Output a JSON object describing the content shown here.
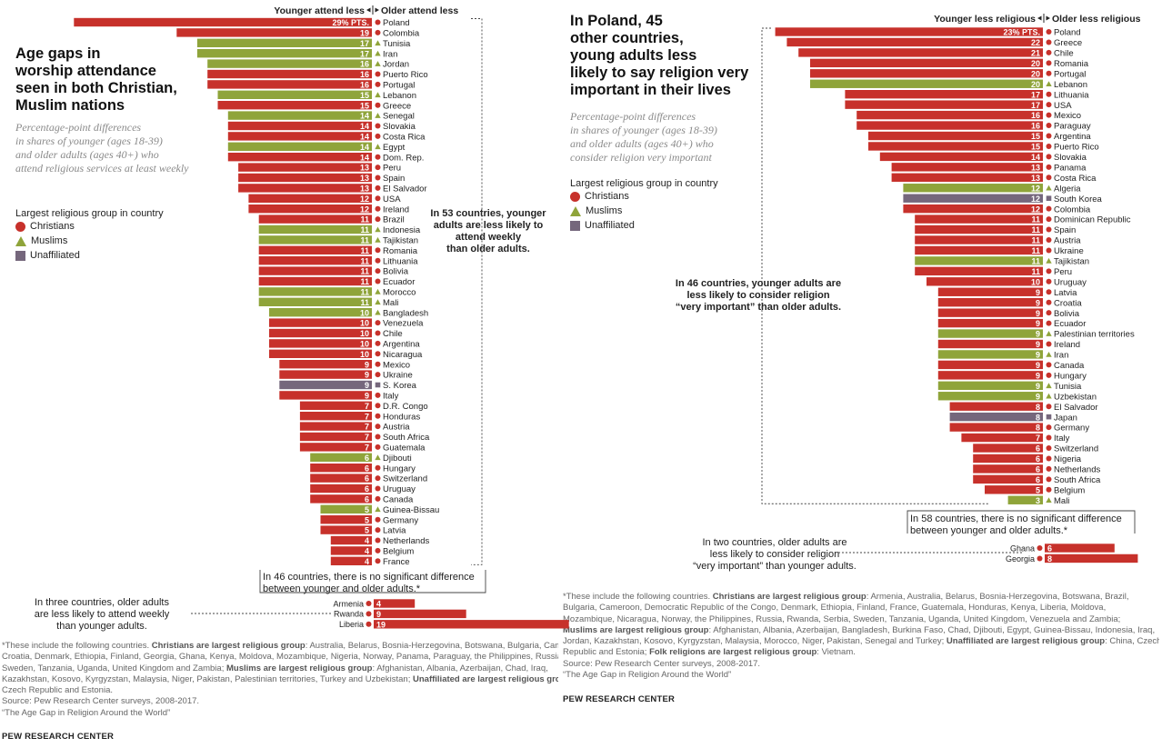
{
  "colors": {
    "Christians": "#c7312b",
    "Muslims": "#8fa43a",
    "Unaffiliated": "#75677c"
  },
  "left": {
    "title": "Age gaps in worship attendance seen in both Christian, Muslim nations",
    "title_lines": [
      "Age gaps in",
      "worship attendance",
      "seen in both Christian,",
      "Muslim nations"
    ],
    "subtitle_lines": [
      "Percentage-point differences",
      "in shares of younger (ages 18-39)",
      "and older adults (ages 40+) who",
      "attend religious services at least weekly"
    ],
    "legend_title": "Largest religious group in country",
    "legend": [
      "Christians",
      "Muslims",
      "Unaffiliated"
    ],
    "header_left": "Younger attend less",
    "header_right": "Older attend less",
    "note_main": [
      "In 53 countries, younger",
      "adults are less likely to",
      "attend weekly",
      "than older adults."
    ],
    "note_nodiff": [
      "In 46 countries, there is no significant difference",
      "between younger and older adults.*"
    ],
    "note_reverse": [
      "In three countries, older adults",
      "are less likely to attend weekly",
      "than younger adults."
    ],
    "first_label": "29% PTS."
  },
  "right": {
    "title": "In Poland, 45 other countries, young adults less likely to say religion very important in their lives",
    "title_lines": [
      "In Poland, 45",
      "other countries,",
      "young adults less",
      "likely to say religion very",
      "important in their lives"
    ],
    "subtitle_lines": [
      "Percentage-point differences",
      "in shares of younger (ages 18-39)",
      "and older adults (ages 40+) who",
      "consider religion very important"
    ],
    "legend_title": "Largest religious group in country",
    "legend": [
      "Christians",
      "Muslims",
      "Unaffiliated"
    ],
    "header_left": "Younger less religious",
    "header_right": "Older less religious",
    "note_main": [
      "In 46 countries, younger adults are",
      "less likely to consider religion",
      "“very important” than older adults."
    ],
    "note_nodiff": [
      "In 58 countries, there is no significant difference",
      "between younger and older adults.*"
    ],
    "note_reverse": [
      "In two countries, older adults are",
      "less likely to consider religion",
      "“very important” than younger adults."
    ],
    "first_label": "23% PTS."
  },
  "footnote_left": [
    "*These include the following countries. <b>Christians are largest religious group</b>: Australia, Belarus, Bosnia-Herzegovina, Botswana, Bulgaria, Cameroon,",
    "Croatia, Denmark, Ethiopia, Finland, Georgia, Ghana, Kenya, Moldova, Mozambique, Nigeria, Norway, Panama, Paraguay, the Philippines, Russia, Serbia,",
    "Sweden, Tanzania, Uganda, United Kingdom and Zambia; <b>Muslims are largest religious group</b>: Afghanistan, Albania, Azerbaijan, Chad, Iraq,",
    "Kazakhstan, Kosovo, Kyrgyzstan, Malaysia, Niger, Pakistan, Palestinian territories, Turkey and Uzbekistan; <b>Unaffiliated are largest religious group</b>:",
    "Czech Republic and Estonia.",
    "Source: Pew Research Center surveys, 2008-2017.",
    "“The Age Gap in Religion Around the World”"
  ],
  "footnote_right": [
    "*These include the following countries. <b>Christians are largest religious group</b>: Armenia, Australia, Belarus, Bosnia-Herzegovina, Botswana, Brazil,",
    "Bulgaria, Cameroon, Democratic Republic of the Congo, Denmark, Ethiopia, Finland, France, Guatemala, Honduras, Kenya, Liberia, Moldova,",
    "Mozambique, Nicaragua, Norway, the Philippines, Russia, Rwanda, Serbia, Sweden, Tanzania, Uganda, United Kingdom, Venezuela and Zambia;",
    "<b>Muslims are largest religious group</b>: Afghanistan, Albania, Azerbaijan, Bangladesh, Burkina Faso, Chad, Djibouti, Egypt, Guinea-Bissau, Indonesia, Iraq,",
    "Jordan, Kazakhstan, Kosovo, Kyrgyzstan, Malaysia, Morocco, Niger, Pakistan, Senegal and Turkey; <b>Unaffiliated are largest religious group</b>: China, Czech",
    "Republic and Estonia; <b>Folk religions are largest religious group</b>: Vietnam.",
    "Source: Pew Research Center surveys, 2008-2017.",
    "“The Age Gap in Religion Around the World”"
  ],
  "brand": "PEW RESEARCH CENTER",
  "chart_data": [
    {
      "type": "bar",
      "title": "Age gaps in worship attendance seen in both Christian, Muslim nations",
      "value_unit": "percentage points",
      "series": [
        {
          "country": "Poland",
          "value": 29,
          "group": "Christians"
        },
        {
          "country": "Colombia",
          "value": 19,
          "group": "Christians"
        },
        {
          "country": "Tunisia",
          "value": 17,
          "group": "Muslims"
        },
        {
          "country": "Iran",
          "value": 17,
          "group": "Muslims"
        },
        {
          "country": "Jordan",
          "value": 16,
          "group": "Muslims"
        },
        {
          "country": "Puerto Rico",
          "value": 16,
          "group": "Christians"
        },
        {
          "country": "Portugal",
          "value": 16,
          "group": "Christians"
        },
        {
          "country": "Lebanon",
          "value": 15,
          "group": "Muslims"
        },
        {
          "country": "Greece",
          "value": 15,
          "group": "Christians"
        },
        {
          "country": "Senegal",
          "value": 14,
          "group": "Muslims"
        },
        {
          "country": "Slovakia",
          "value": 14,
          "group": "Christians"
        },
        {
          "country": "Costa Rica",
          "value": 14,
          "group": "Christians"
        },
        {
          "country": "Egypt",
          "value": 14,
          "group": "Muslims"
        },
        {
          "country": "Dom. Rep.",
          "value": 14,
          "group": "Christians"
        },
        {
          "country": "Peru",
          "value": 13,
          "group": "Christians"
        },
        {
          "country": "Spain",
          "value": 13,
          "group": "Christians"
        },
        {
          "country": "El Salvador",
          "value": 13,
          "group": "Christians"
        },
        {
          "country": "USA",
          "value": 12,
          "group": "Christians"
        },
        {
          "country": "Ireland",
          "value": 12,
          "group": "Christians"
        },
        {
          "country": "Brazil",
          "value": 11,
          "group": "Christians"
        },
        {
          "country": "Indonesia",
          "value": 11,
          "group": "Muslims"
        },
        {
          "country": "Tajikistan",
          "value": 11,
          "group": "Muslims"
        },
        {
          "country": "Romania",
          "value": 11,
          "group": "Christians"
        },
        {
          "country": "Lithuania",
          "value": 11,
          "group": "Christians"
        },
        {
          "country": "Bolivia",
          "value": 11,
          "group": "Christians"
        },
        {
          "country": "Ecuador",
          "value": 11,
          "group": "Christians"
        },
        {
          "country": "Morocco",
          "value": 11,
          "group": "Muslims"
        },
        {
          "country": "Mali",
          "value": 11,
          "group": "Muslims"
        },
        {
          "country": "Bangladesh",
          "value": 10,
          "group": "Muslims"
        },
        {
          "country": "Venezuela",
          "value": 10,
          "group": "Christians"
        },
        {
          "country": "Chile",
          "value": 10,
          "group": "Christians"
        },
        {
          "country": "Argentina",
          "value": 10,
          "group": "Christians"
        },
        {
          "country": "Nicaragua",
          "value": 10,
          "group": "Christians"
        },
        {
          "country": "Mexico",
          "value": 9,
          "group": "Christians"
        },
        {
          "country": "Ukraine",
          "value": 9,
          "group": "Christians"
        },
        {
          "country": "S. Korea",
          "value": 9,
          "group": "Unaffiliated"
        },
        {
          "country": "Italy",
          "value": 9,
          "group": "Christians"
        },
        {
          "country": "D.R. Congo",
          "value": 7,
          "group": "Christians"
        },
        {
          "country": "Honduras",
          "value": 7,
          "group": "Christians"
        },
        {
          "country": "Austria",
          "value": 7,
          "group": "Christians"
        },
        {
          "country": "South Africa",
          "value": 7,
          "group": "Christians"
        },
        {
          "country": "Guatemala",
          "value": 7,
          "group": "Christians"
        },
        {
          "country": "Djibouti",
          "value": 6,
          "group": "Muslims"
        },
        {
          "country": "Hungary",
          "value": 6,
          "group": "Christians"
        },
        {
          "country": "Switzerland",
          "value": 6,
          "group": "Christians"
        },
        {
          "country": "Uruguay",
          "value": 6,
          "group": "Christians"
        },
        {
          "country": "Canada",
          "value": 6,
          "group": "Christians"
        },
        {
          "country": "Guinea-Bissau",
          "value": 5,
          "group": "Muslims"
        },
        {
          "country": "Germany",
          "value": 5,
          "group": "Christians"
        },
        {
          "country": "Latvia",
          "value": 5,
          "group": "Christians"
        },
        {
          "country": "Netherlands",
          "value": 4,
          "group": "Christians"
        },
        {
          "country": "Belgium",
          "value": 4,
          "group": "Christians"
        },
        {
          "country": "France",
          "value": 4,
          "group": "Christians"
        }
      ],
      "reverse_series": [
        {
          "country": "Armenia",
          "value": 4,
          "group": "Christians"
        },
        {
          "country": "Rwanda",
          "value": 9,
          "group": "Christians"
        },
        {
          "country": "Liberia",
          "value": 19,
          "group": "Christians"
        }
      ]
    },
    {
      "type": "bar",
      "title": "In Poland, 45 other countries, young adults less likely to say religion very important in their lives",
      "value_unit": "percentage points",
      "series": [
        {
          "country": "Poland",
          "value": 23,
          "group": "Christians"
        },
        {
          "country": "Greece",
          "value": 22,
          "group": "Christians"
        },
        {
          "country": "Chile",
          "value": 21,
          "group": "Christians"
        },
        {
          "country": "Romania",
          "value": 20,
          "group": "Christians"
        },
        {
          "country": "Portugal",
          "value": 20,
          "group": "Christians"
        },
        {
          "country": "Lebanon",
          "value": 20,
          "group": "Muslims"
        },
        {
          "country": "Lithuania",
          "value": 17,
          "group": "Christians"
        },
        {
          "country": "USA",
          "value": 17,
          "group": "Christians"
        },
        {
          "country": "Mexico",
          "value": 16,
          "group": "Christians"
        },
        {
          "country": "Paraguay",
          "value": 16,
          "group": "Christians"
        },
        {
          "country": "Argentina",
          "value": 15,
          "group": "Christians"
        },
        {
          "country": "Puerto Rico",
          "value": 15,
          "group": "Christians"
        },
        {
          "country": "Slovakia",
          "value": 14,
          "group": "Christians"
        },
        {
          "country": "Panama",
          "value": 13,
          "group": "Christians"
        },
        {
          "country": "Costa Rica",
          "value": 13,
          "group": "Christians"
        },
        {
          "country": "Algeria",
          "value": 12,
          "group": "Muslims"
        },
        {
          "country": "South Korea",
          "value": 12,
          "group": "Unaffiliated"
        },
        {
          "country": "Colombia",
          "value": 12,
          "group": "Christians"
        },
        {
          "country": "Dominican Republic",
          "value": 11,
          "group": "Christians"
        },
        {
          "country": "Spain",
          "value": 11,
          "group": "Christians"
        },
        {
          "country": "Austria",
          "value": 11,
          "group": "Christians"
        },
        {
          "country": "Ukraine",
          "value": 11,
          "group": "Christians"
        },
        {
          "country": "Tajikistan",
          "value": 11,
          "group": "Muslims"
        },
        {
          "country": "Peru",
          "value": 11,
          "group": "Christians"
        },
        {
          "country": "Uruguay",
          "value": 10,
          "group": "Christians"
        },
        {
          "country": "Latvia",
          "value": 9,
          "group": "Christians"
        },
        {
          "country": "Croatia",
          "value": 9,
          "group": "Christians"
        },
        {
          "country": "Bolivia",
          "value": 9,
          "group": "Christians"
        },
        {
          "country": "Ecuador",
          "value": 9,
          "group": "Christians"
        },
        {
          "country": "Palestinian territories",
          "value": 9,
          "group": "Muslims"
        },
        {
          "country": "Ireland",
          "value": 9,
          "group": "Christians"
        },
        {
          "country": "Iran",
          "value": 9,
          "group": "Muslims"
        },
        {
          "country": "Canada",
          "value": 9,
          "group": "Christians"
        },
        {
          "country": "Hungary",
          "value": 9,
          "group": "Christians"
        },
        {
          "country": "Tunisia",
          "value": 9,
          "group": "Muslims"
        },
        {
          "country": "Uzbekistan",
          "value": 9,
          "group": "Muslims"
        },
        {
          "country": "El Salvador",
          "value": 8,
          "group": "Christians"
        },
        {
          "country": "Japan",
          "value": 8,
          "group": "Unaffiliated"
        },
        {
          "country": "Germany",
          "value": 8,
          "group": "Christians"
        },
        {
          "country": "Italy",
          "value": 7,
          "group": "Christians"
        },
        {
          "country": "Switzerland",
          "value": 6,
          "group": "Christians"
        },
        {
          "country": "Nigeria",
          "value": 6,
          "group": "Christians"
        },
        {
          "country": "Netherlands",
          "value": 6,
          "group": "Christians"
        },
        {
          "country": "South Africa",
          "value": 6,
          "group": "Christians"
        },
        {
          "country": "Belgium",
          "value": 5,
          "group": "Christians"
        },
        {
          "country": "Mali",
          "value": 3,
          "group": "Muslims"
        }
      ],
      "reverse_series": [
        {
          "country": "Ghana",
          "value": 6,
          "group": "Christians"
        },
        {
          "country": "Georgia",
          "value": 8,
          "group": "Christians"
        }
      ]
    }
  ]
}
